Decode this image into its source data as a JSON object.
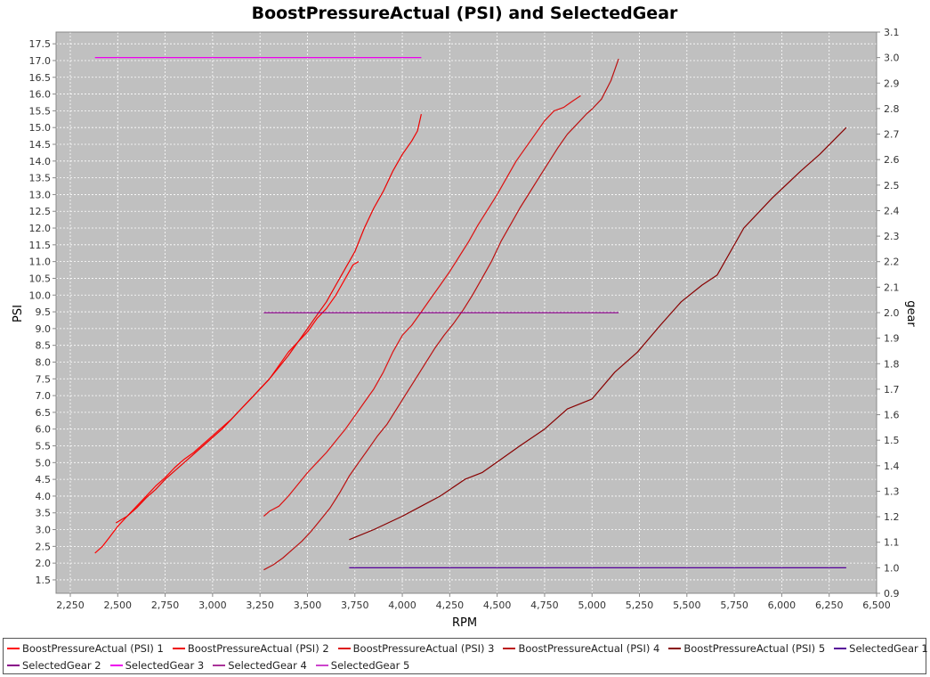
{
  "chart_data": {
    "type": "line",
    "title": "BoostPressureActual (PSI) and SelectedGear",
    "xlabel": "RPM",
    "ylabel": "PSI",
    "y2label": "gear",
    "xlim": [
      2175,
      6500
    ],
    "ylim": [
      1.1,
      17.85
    ],
    "y2lim": [
      0.9,
      3.1
    ],
    "grid": true,
    "plot_background": "#c0c0c0",
    "x_ticks": [
      "2,250",
      "2,500",
      "2,750",
      "3,000",
      "3,250",
      "3,500",
      "3,750",
      "4,000",
      "4,250",
      "4,500",
      "4,750",
      "5,000",
      "5,250",
      "5,500",
      "5,750",
      "6,000",
      "6,250",
      "6,500"
    ],
    "x_tick_values": [
      2250,
      2500,
      2750,
      3000,
      3250,
      3500,
      3750,
      4000,
      4250,
      4500,
      4750,
      5000,
      5250,
      5500,
      5750,
      6000,
      6250,
      6500
    ],
    "y_ticks": [
      "1.5",
      "2.0",
      "2.5",
      "3.0",
      "3.5",
      "4.0",
      "4.5",
      "5.0",
      "5.5",
      "6.0",
      "6.5",
      "7.0",
      "7.5",
      "8.0",
      "8.5",
      "9.0",
      "9.5",
      "10.0",
      "10.5",
      "11.0",
      "11.5",
      "12.0",
      "12.5",
      "13.0",
      "13.5",
      "14.0",
      "14.5",
      "15.0",
      "15.5",
      "16.0",
      "16.5",
      "17.0",
      "17.5"
    ],
    "y_tick_values": [
      1.5,
      2.0,
      2.5,
      3.0,
      3.5,
      4.0,
      4.5,
      5.0,
      5.5,
      6.0,
      6.5,
      7.0,
      7.5,
      8.0,
      8.5,
      9.0,
      9.5,
      10.0,
      10.5,
      11.0,
      11.5,
      12.0,
      12.5,
      13.0,
      13.5,
      14.0,
      14.5,
      15.0,
      15.5,
      16.0,
      16.5,
      17.0,
      17.5
    ],
    "y2_ticks": [
      "0.9",
      "1.0",
      "1.1",
      "1.2",
      "1.3",
      "1.4",
      "1.5",
      "1.6",
      "1.7",
      "1.8",
      "1.9",
      "2.0",
      "2.1",
      "2.2",
      "2.3",
      "2.4",
      "2.5",
      "2.6",
      "2.7",
      "2.8",
      "2.9",
      "3.0",
      "3.1"
    ],
    "y2_tick_values": [
      0.9,
      1.0,
      1.1,
      1.2,
      1.3,
      1.4,
      1.5,
      1.6,
      1.7,
      1.8,
      1.9,
      2.0,
      2.1,
      2.2,
      2.3,
      2.4,
      2.5,
      2.6,
      2.7,
      2.8,
      2.9,
      3.0,
      3.1
    ],
    "series": [
      {
        "name": "BoostPressureActual (PSI) 1",
        "axis": "left",
        "color": "#ff0000",
        "x": [
          2380,
          2420,
          2460,
          2500,
          2550,
          2600,
          2650,
          2700,
          2750,
          2800,
          2850,
          2900,
          2950,
          3000,
          3050,
          3100,
          3150,
          3200,
          3250,
          3300,
          3350,
          3400,
          3450,
          3500,
          3550,
          3600,
          3650,
          3700,
          3740,
          3770
        ],
        "y": [
          2.3,
          2.5,
          2.8,
          3.1,
          3.4,
          3.7,
          4.0,
          4.3,
          4.55,
          4.85,
          5.1,
          5.3,
          5.55,
          5.8,
          6.05,
          6.3,
          6.6,
          6.9,
          7.2,
          7.5,
          7.9,
          8.3,
          8.6,
          8.9,
          9.3,
          9.6,
          10.0,
          10.5,
          10.9,
          11.0
        ]
      },
      {
        "name": "BoostPressureActual (PSI) 2",
        "axis": "left",
        "color": "#ee0000",
        "x": [
          2490,
          2550,
          2600,
          2650,
          2700,
          2750,
          2800,
          2850,
          2900,
          2950,
          3000,
          3050,
          3100,
          3150,
          3200,
          3250,
          3300,
          3350,
          3400,
          3450,
          3500,
          3550,
          3600,
          3650,
          3700,
          3750,
          3800,
          3850,
          3900,
          3950,
          4000,
          4050,
          4080,
          4100
        ],
        "y": [
          3.2,
          3.4,
          3.65,
          3.95,
          4.2,
          4.5,
          4.75,
          5.0,
          5.25,
          5.5,
          5.75,
          6.0,
          6.3,
          6.6,
          6.9,
          7.2,
          7.5,
          7.85,
          8.2,
          8.6,
          9.0,
          9.4,
          9.8,
          10.3,
          10.8,
          11.3,
          12.0,
          12.6,
          13.1,
          13.7,
          14.2,
          14.6,
          14.9,
          15.4
        ]
      },
      {
        "name": "BoostPressureActual (PSI) 3",
        "axis": "left",
        "color": "#dd1111",
        "x": [
          3270,
          3300,
          3350,
          3400,
          3450,
          3500,
          3550,
          3600,
          3650,
          3700,
          3750,
          3800,
          3850,
          3900,
          3950,
          4000,
          4050,
          4100,
          4150,
          4200,
          4250,
          4300,
          4350,
          4400,
          4450,
          4500,
          4550,
          4600,
          4650,
          4700,
          4750,
          4800,
          4850,
          4900,
          4940
        ],
        "y": [
          3.4,
          3.55,
          3.7,
          4.0,
          4.35,
          4.7,
          5.0,
          5.3,
          5.65,
          6.0,
          6.4,
          6.8,
          7.2,
          7.7,
          8.3,
          8.8,
          9.1,
          9.5,
          9.9,
          10.3,
          10.7,
          11.15,
          11.6,
          12.1,
          12.55,
          13.0,
          13.5,
          14.0,
          14.4,
          14.8,
          15.2,
          15.5,
          15.6,
          15.8,
          15.95
        ]
      },
      {
        "name": "BoostPressureActual (PSI) 4",
        "axis": "left",
        "color": "#bb1111",
        "x": [
          3270,
          3320,
          3370,
          3420,
          3470,
          3520,
          3570,
          3620,
          3670,
          3720,
          3770,
          3820,
          3870,
          3920,
          3970,
          4020,
          4070,
          4120,
          4170,
          4220,
          4270,
          4320,
          4370,
          4420,
          4470,
          4520,
          4570,
          4620,
          4670,
          4720,
          4770,
          4820,
          4870,
          4920,
          4970,
          5000,
          5050,
          5100,
          5140
        ],
        "y": [
          1.8,
          1.95,
          2.15,
          2.4,
          2.65,
          2.95,
          3.3,
          3.65,
          4.1,
          4.6,
          5.0,
          5.4,
          5.8,
          6.15,
          6.6,
          7.05,
          7.5,
          7.95,
          8.4,
          8.8,
          9.15,
          9.55,
          10.0,
          10.5,
          11.0,
          11.6,
          12.1,
          12.6,
          13.05,
          13.5,
          13.95,
          14.4,
          14.8,
          15.1,
          15.4,
          15.55,
          15.85,
          16.4,
          17.05
        ]
      },
      {
        "name": "BoostPressureActual (PSI) 5",
        "axis": "left",
        "color": "#880000",
        "x": [
          3720,
          3850,
          4000,
          4100,
          4200,
          4330,
          4420,
          4520,
          4620,
          4750,
          4870,
          5000,
          5120,
          5240,
          5360,
          5470,
          5580,
          5660,
          5800,
          5950,
          6100,
          6200,
          6340
        ],
        "y": [
          2.7,
          3.0,
          3.4,
          3.7,
          4.0,
          4.5,
          4.7,
          5.1,
          5.5,
          6.0,
          6.6,
          6.9,
          7.7,
          8.3,
          9.1,
          9.8,
          10.3,
          10.6,
          12.0,
          12.9,
          13.7,
          14.2,
          15.0
        ]
      },
      {
        "name": "SelectedGear 1",
        "axis": "right",
        "color": "#550099",
        "x": [
          3720,
          6340
        ],
        "y": [
          1.0,
          1.0
        ]
      },
      {
        "name": "SelectedGear 2",
        "axis": "right",
        "color": "#880088",
        "x": [
          3270,
          5140
        ],
        "y": [
          2.0,
          2.0
        ]
      },
      {
        "name": "SelectedGear 3",
        "axis": "right",
        "color": "#ee00ee",
        "x": [
          2380,
          4100
        ],
        "y": [
          3.0,
          3.0
        ]
      },
      {
        "name": "SelectedGear 4",
        "axis": "right",
        "color": "#aa3399",
        "x": [],
        "y": []
      },
      {
        "name": "SelectedGear 5",
        "axis": "right",
        "color": "#cc44cc",
        "x": [],
        "y": []
      }
    ]
  }
}
